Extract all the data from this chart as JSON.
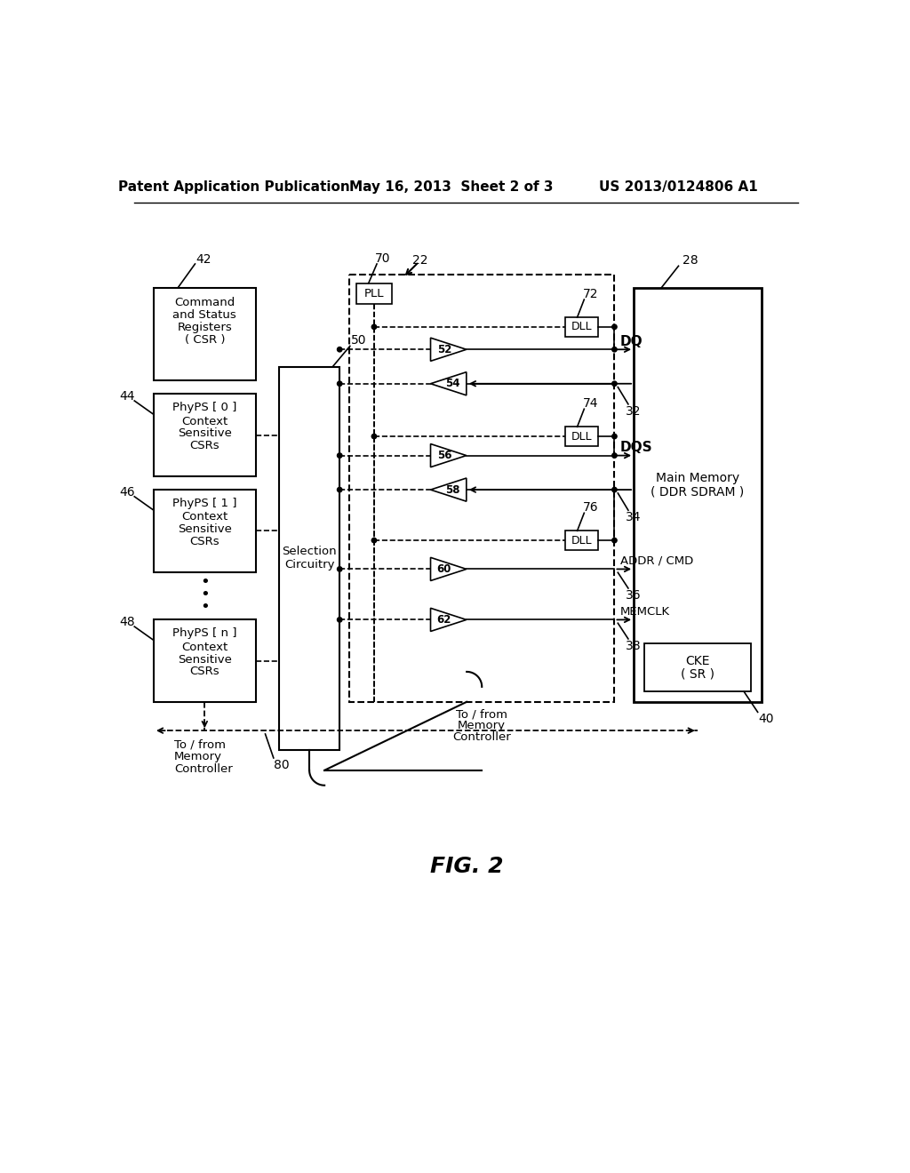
{
  "header_left": "Patent Application Publication",
  "header_mid": "May 16, 2013  Sheet 2 of 3",
  "header_right": "US 2013/0124806 A1",
  "fig_label": "FIG. 2",
  "bg_color": "#ffffff",
  "line_color": "#000000"
}
